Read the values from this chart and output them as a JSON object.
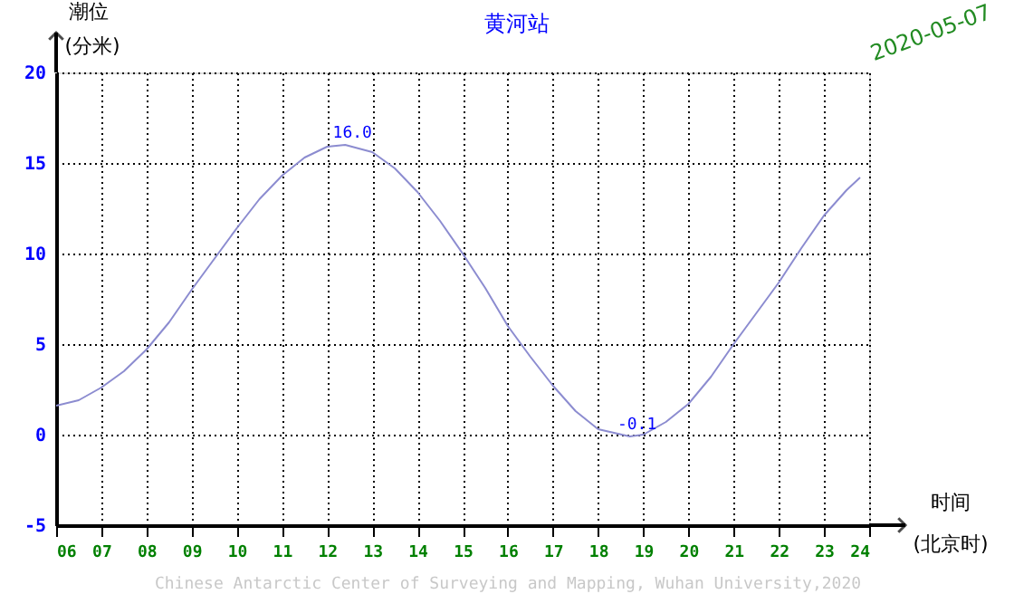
{
  "chart_data": {
    "type": "line",
    "title": "黄河站",
    "subtitle": "2020-05-07",
    "xlabel": "时间 (北京时)",
    "ylabel": "潮位 (分米)",
    "x": [
      6,
      6.5,
      7,
      7.5,
      8,
      8.5,
      9,
      9.5,
      10,
      10.5,
      11,
      11.5,
      12,
      12.4,
      13,
      13.5,
      14,
      14.5,
      15,
      15.5,
      16,
      16.5,
      17,
      17.5,
      18,
      18.7,
      19,
      19.5,
      20,
      20.5,
      21,
      21.5,
      22,
      22.5,
      23,
      23.5,
      23.8
    ],
    "series": [
      {
        "color": "#8c8cd0",
        "values": [
          1.6,
          1.9,
          2.6,
          3.5,
          4.7,
          6.2,
          8.0,
          9.7,
          11.4,
          13.0,
          14.3,
          15.3,
          15.9,
          16.0,
          15.6,
          14.7,
          13.4,
          11.8,
          10.0,
          8.1,
          6.0,
          4.3,
          2.7,
          1.3,
          0.3,
          -0.1,
          0.0,
          0.7,
          1.7,
          3.2,
          5.0,
          6.7,
          8.4,
          10.3,
          12.1,
          13.5,
          14.2
        ]
      }
    ],
    "xlim": [
      6,
      24
    ],
    "xticks": [
      {
        "value": 6,
        "label": "06"
      },
      {
        "value": 7,
        "label": "07"
      },
      {
        "value": 8,
        "label": "08"
      },
      {
        "value": 9,
        "label": "09"
      },
      10,
      11,
      12,
      13,
      14,
      15,
      16,
      17,
      18,
      19,
      20,
      21,
      22,
      23,
      24
    ],
    "ylim": [
      -5,
      20
    ],
    "yticks": [
      -5,
      0,
      5,
      10,
      15,
      20
    ],
    "grid": true,
    "line_style": "solid",
    "annotations": [
      {
        "text": "16.0",
        "x": 12.4,
        "y": 16.0
      },
      {
        "text": "-0.1",
        "x": 18.7,
        "y": -0.1
      },
      "Chinese Antarctic Center of Surveying and Mapping, Wuhan University,2020"
    ]
  }
}
